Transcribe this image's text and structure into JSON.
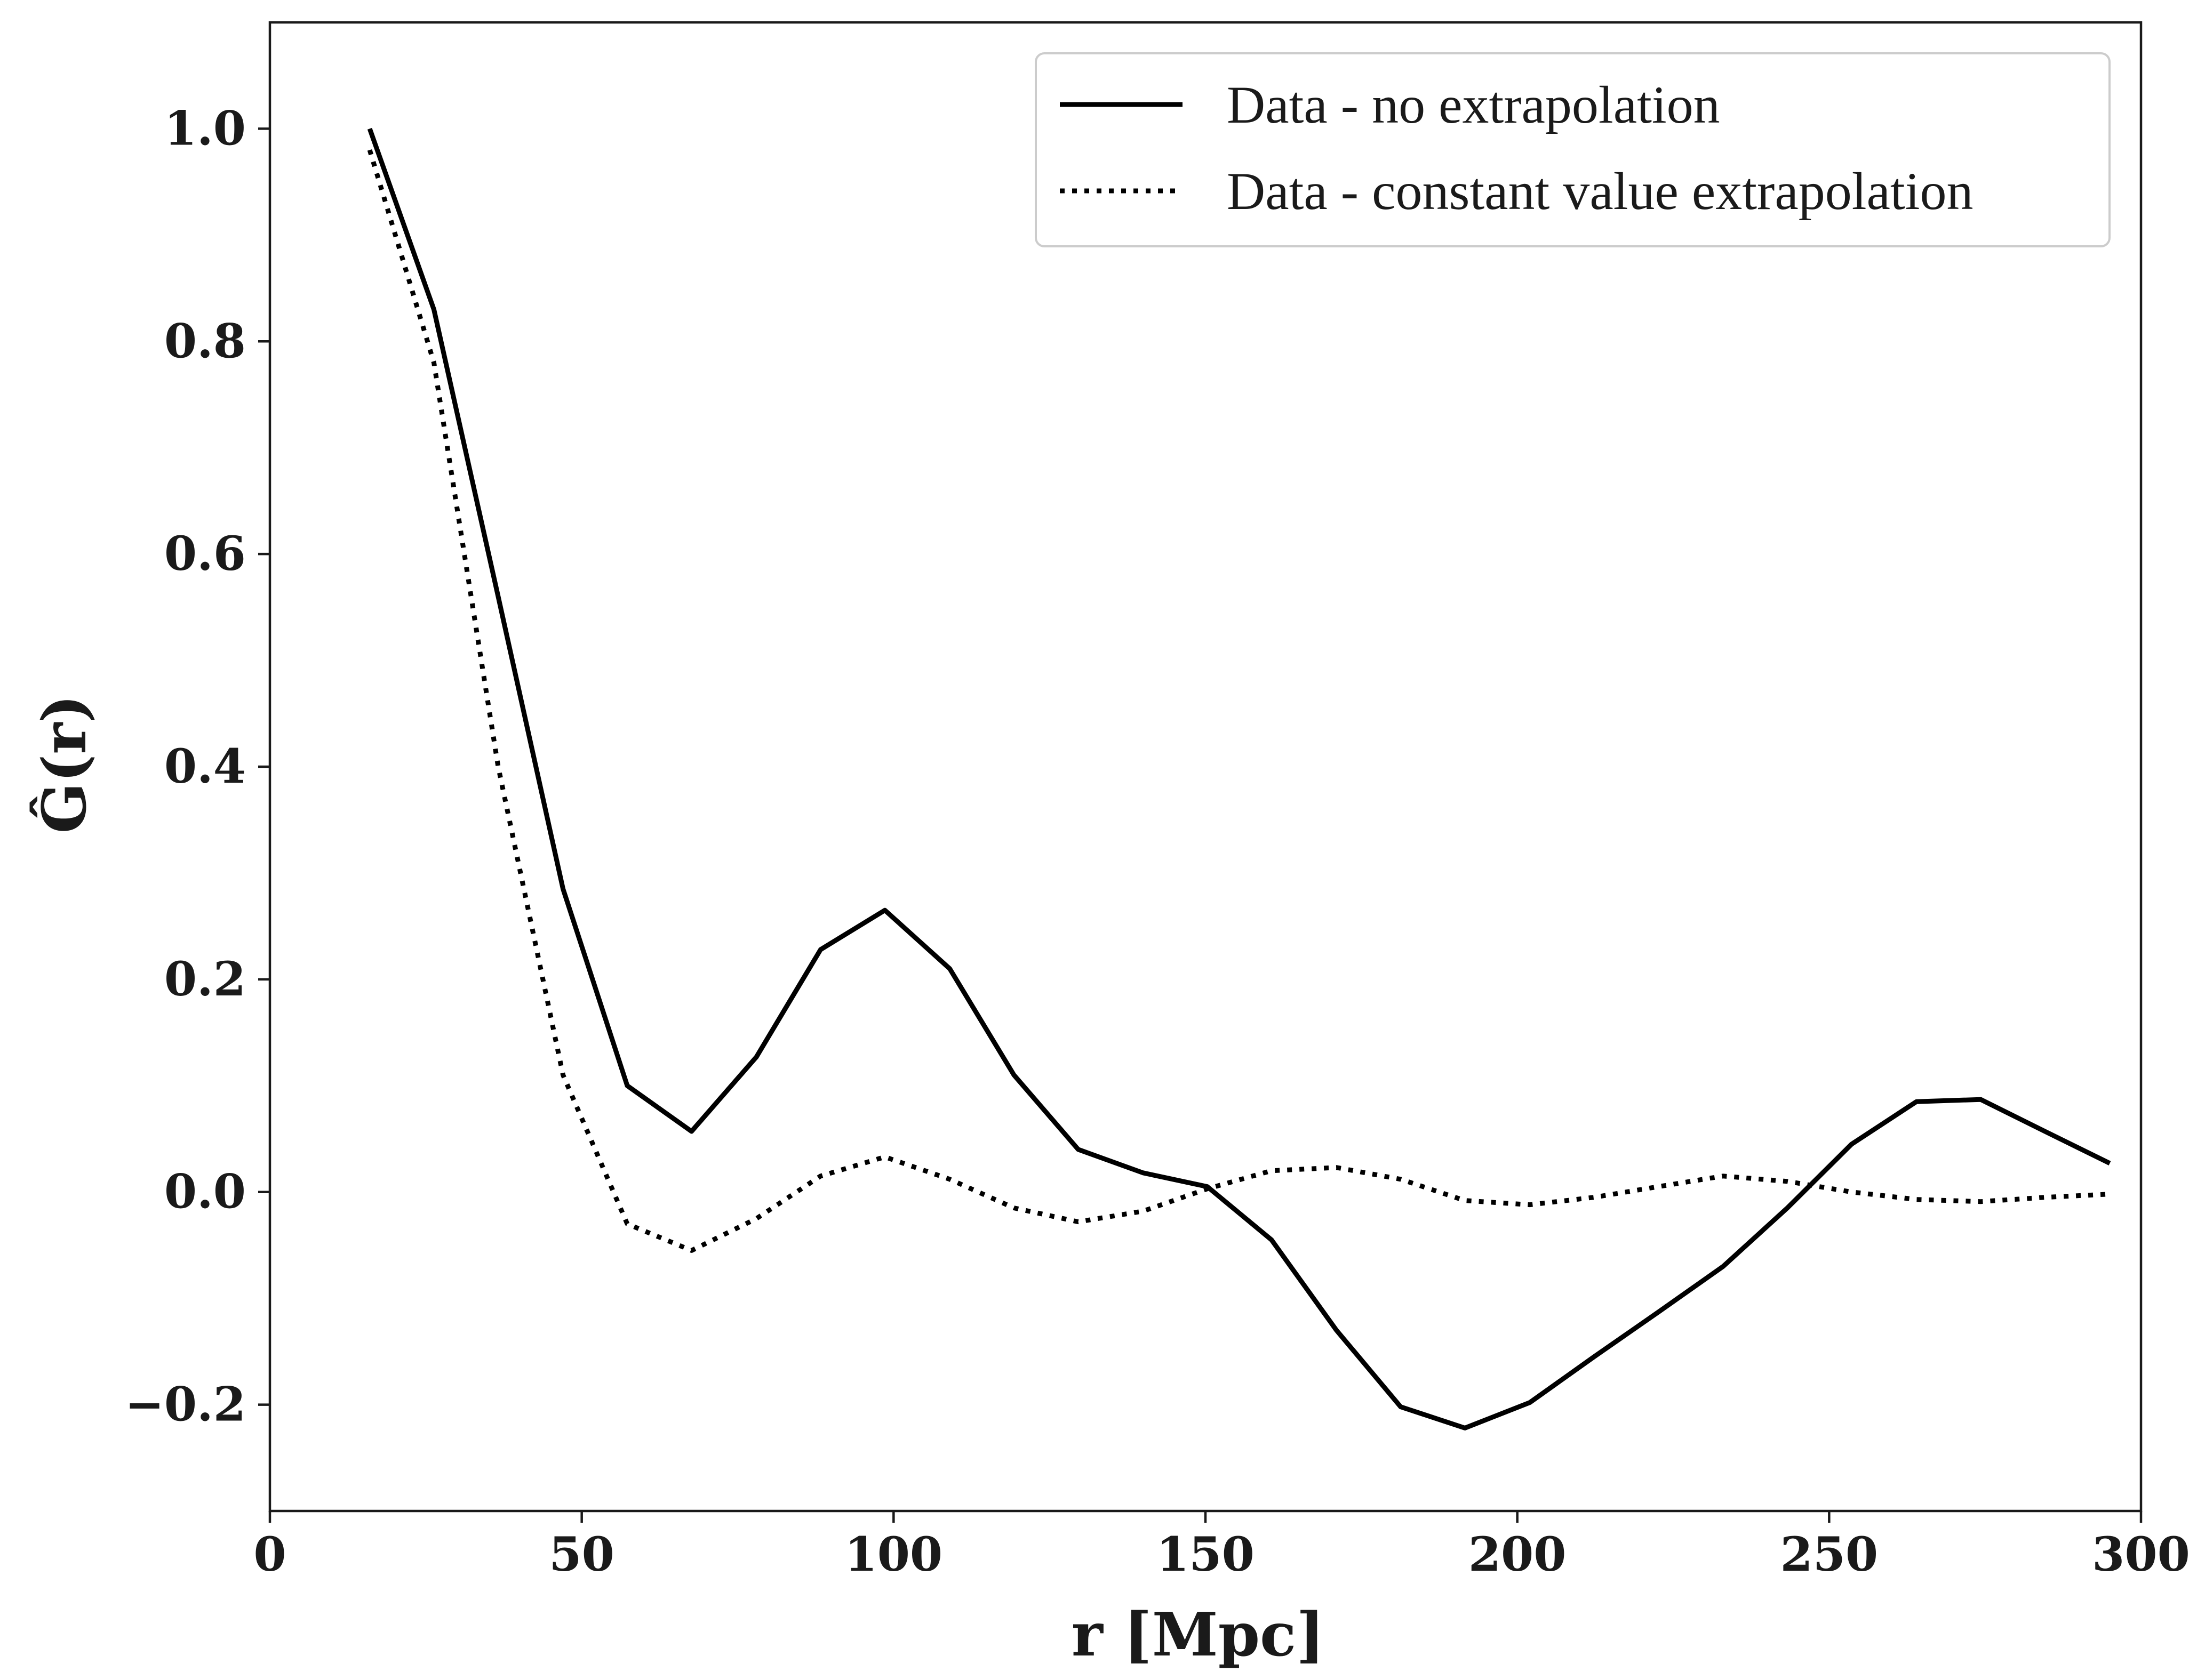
{
  "chart_data": {
    "type": "line",
    "xlabel": "r [Mpc]",
    "ylabel": "Ĝ(r)",
    "xlim": [
      0,
      300
    ],
    "ylim": [
      -0.3,
      1.1
    ],
    "xticks": [
      0,
      50,
      100,
      150,
      200,
      250,
      300
    ],
    "xtick_labels": [
      "0",
      "50",
      "100",
      "150",
      "200",
      "250",
      "300"
    ],
    "yticks": [
      -0.2,
      0.0,
      0.2,
      0.4,
      0.6,
      0.8,
      1.0
    ],
    "ytick_labels": [
      "−0.2",
      "0.0",
      "0.2",
      "0.4",
      "0.6",
      "0.8",
      "1.0"
    ],
    "grid": false,
    "legend_position": "top-right",
    "series": [
      {
        "name": "Data - no extrapolation",
        "style": "solid",
        "color": "#000000",
        "x": [
          16,
          26.3,
          36.6,
          47,
          57.3,
          67.6,
          78,
          88.3,
          98.6,
          109,
          119.3,
          129.6,
          140,
          150.3,
          160.6,
          171,
          181.3,
          191.6,
          202,
          212.3,
          222.6,
          233,
          243.3,
          253.6,
          264,
          274.3,
          284.6,
          295
        ],
        "y": [
          1.0,
          0.83,
          0.56,
          0.285,
          0.1,
          0.057,
          0.127,
          0.228,
          0.265,
          0.21,
          0.11,
          0.04,
          0.018,
          0.005,
          -0.045,
          -0.13,
          -0.202,
          -0.222,
          -0.198,
          -0.155,
          -0.113,
          -0.07,
          -0.015,
          0.045,
          0.085,
          0.087,
          0.057,
          0.027
        ]
      },
      {
        "name": "Data - constant value extrapolation",
        "style": "dotted",
        "color": "#000000",
        "x": [
          16,
          26.3,
          36.6,
          47,
          57.3,
          67.6,
          78,
          88.3,
          98.6,
          109,
          119.3,
          129.6,
          140,
          150.3,
          160.6,
          171,
          181.3,
          191.6,
          202,
          212.3,
          222.6,
          233,
          243.3,
          253.6,
          264,
          274.3,
          284.6,
          295
        ],
        "y": [
          0.98,
          0.78,
          0.4,
          0.11,
          -0.03,
          -0.055,
          -0.025,
          0.015,
          0.033,
          0.012,
          -0.015,
          -0.028,
          -0.018,
          0.003,
          0.02,
          0.023,
          0.012,
          -0.008,
          -0.012,
          -0.005,
          0.005,
          0.015,
          0.01,
          0.0,
          -0.007,
          -0.009,
          -0.005,
          -0.002
        ]
      }
    ]
  }
}
